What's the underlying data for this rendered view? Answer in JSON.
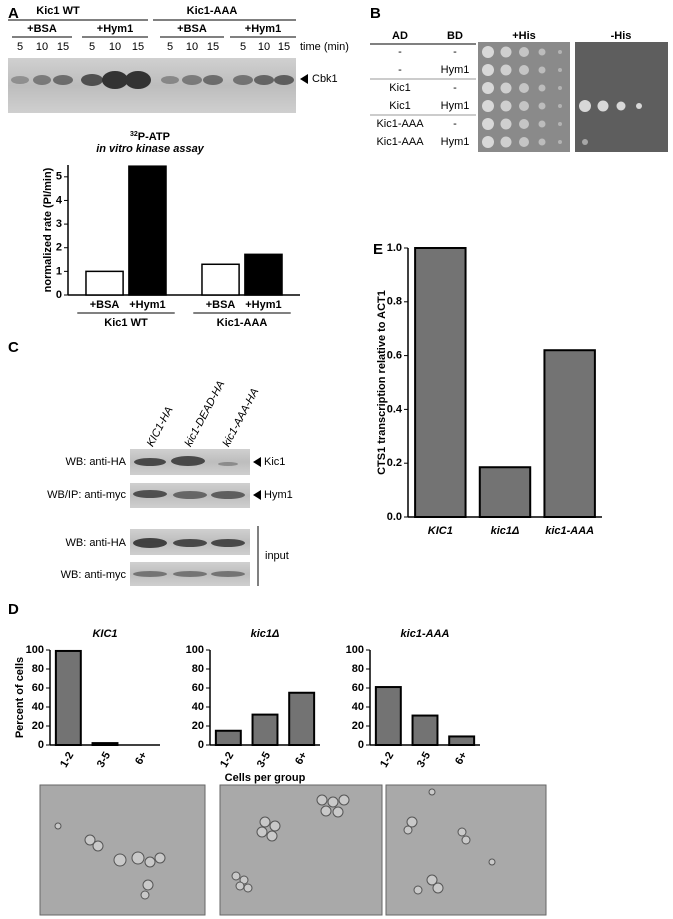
{
  "panel_labels": [
    "A",
    "B",
    "C",
    "D",
    "E"
  ],
  "panel_a": {
    "groups": [
      "Kic1 WT",
      "Kic1-AAA"
    ],
    "treatments": [
      "+BSA",
      "+Hym1",
      "+BSA",
      "+Hym1"
    ],
    "times": [
      5,
      10,
      15
    ],
    "time_label": "time (min)",
    "band_label": "Cbk1",
    "assay_isotope": "32",
    "assay_line1": "P-ATP",
    "assay_line2": "in vitro kinase assay"
  },
  "panel_b": {
    "headers": [
      "AD",
      "BD",
      "+His",
      "-His"
    ],
    "rows": [
      [
        "-",
        "-"
      ],
      [
        "-",
        "Hym1"
      ],
      [
        "Kic1",
        "-"
      ],
      [
        "Kic1",
        "Hym1"
      ],
      [
        "Kic1-AAA",
        "-"
      ],
      [
        "Kic1-AAA",
        "Hym1"
      ]
    ]
  },
  "panel_c": {
    "lanes": [
      "KIC1-HA",
      "kic1-DEAD-HA",
      "kic1-AAA-HA"
    ],
    "blots": [
      "WB: anti-HA",
      "WB/IP: anti-myc",
      "WB: anti-HA",
      "WB: anti-myc"
    ],
    "bands": [
      "Kic1",
      "Hym1"
    ],
    "input_label": "input"
  },
  "chart_data": [
    {
      "type": "bar",
      "ylabel": "normalized rate (PI/min)",
      "categories": [
        "Kic1 WT",
        "Kic1-AAA"
      ],
      "series": [
        {
          "name": "+BSA",
          "color": "#ffffff",
          "values": [
            1.0,
            1.3
          ]
        },
        {
          "name": "+Hym1",
          "color": "#000000",
          "values": [
            5.45,
            1.72
          ]
        }
      ],
      "ylim": [
        0,
        5.5
      ],
      "yticks": [
        0,
        1,
        2,
        3,
        4,
        5
      ]
    },
    {
      "type": "bar",
      "ylabel": "CTS1 transcription relative to ACT1",
      "categories": [
        "KIC1",
        "kic1Δ",
        "kic1-AAA"
      ],
      "values": [
        1.0,
        0.185,
        0.62
      ],
      "color": "#737373",
      "ylim": [
        0,
        1
      ],
      "yticks": [
        {
          "value": 0,
          "label": "0.0"
        },
        0.2,
        0.4,
        0.6,
        0.8,
        {
          "value": 1,
          "label": "1.0"
        }
      ]
    },
    {
      "type": "bar",
      "title": "KIC1",
      "ylabel": "Percent of cells",
      "categories": [
        "1-2",
        "3-5",
        "6+"
      ],
      "values": [
        99,
        2,
        0
      ],
      "color": "#737373",
      "ylim": [
        0,
        100
      ],
      "yticks": [
        0,
        20,
        40,
        60,
        80,
        100
      ]
    },
    {
      "type": "bar",
      "title": "kic1Δ",
      "xlabel": "Cells per group",
      "categories": [
        "1-2",
        "3-5",
        "6+"
      ],
      "values": [
        15,
        32,
        55
      ],
      "color": "#737373",
      "ylim": [
        0,
        100
      ],
      "yticks": [
        0,
        20,
        40,
        60,
        80,
        100
      ]
    },
    {
      "type": "bar",
      "title": "kic1-AAA",
      "categories": [
        "1-2",
        "3-5",
        "6+"
      ],
      "values": [
        61,
        31,
        9
      ],
      "color": "#737373",
      "ylim": [
        0,
        100
      ],
      "yticks": [
        0,
        20,
        40,
        60,
        80,
        100
      ]
    }
  ]
}
